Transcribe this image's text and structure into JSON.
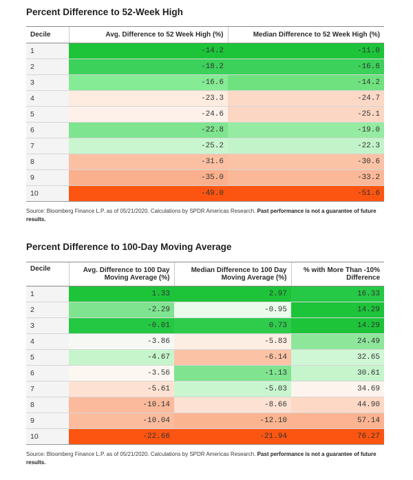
{
  "table1": {
    "title": "Percent Difference to 52-Week High",
    "headers": [
      "Decile",
      "Avg. Difference to 52 Week High (%)",
      "Median Difference to 52 Week High (%)"
    ],
    "rows": [
      [
        "1",
        "-14.2",
        "-11.0"
      ],
      [
        "2",
        "-18.2",
        "-16.6"
      ],
      [
        "3",
        "-16.6",
        "-14.2"
      ],
      [
        "4",
        "-23.3",
        "-24.7"
      ],
      [
        "5",
        "-24.6",
        "-25.1"
      ],
      [
        "6",
        "-22.8",
        "-19.0"
      ],
      [
        "7",
        "-25.2",
        "-22.3"
      ],
      [
        "8",
        "-31.6",
        "-30.6"
      ],
      [
        "9",
        "-35.0",
        "-33.2"
      ],
      [
        "10",
        "-49.0",
        "-51.6"
      ]
    ],
    "colors": [
      [
        "#1dc43a",
        "#1dc43a"
      ],
      [
        "#3cd15a",
        "#3cd15a"
      ],
      [
        "#86eb95",
        "#6fe27f"
      ],
      [
        "#fdecdf",
        "#fbd9c6"
      ],
      [
        "#fdf1ea",
        "#fbd7c3"
      ],
      [
        "#7fe48f",
        "#95eba1"
      ],
      [
        "#c9f6cf",
        "#c3f4c9"
      ],
      [
        "#fbc0a2",
        "#fbc3a6"
      ],
      [
        "#fab08d",
        "#fbb898"
      ],
      [
        "#fb5511",
        "#fb5511"
      ]
    ],
    "source_text": "Source: Bloomberg Finance L.P. as of 05/21/2020. Calculations by SPDR Americas Research. ",
    "source_bold": "Past performance is not a guarantee of future results."
  },
  "table2": {
    "title": "Percent Difference to 100-Day Moving Average",
    "headers": [
      "Decile",
      "Avg. Difference to 100 Day Moving Average (%)",
      "Median Difference to 100 Day Moving Average (%)",
      "% with More Than -10% Difference"
    ],
    "rows": [
      [
        "1",
        "1.33",
        "2.97",
        "16.33"
      ],
      [
        "2",
        "-2.29",
        "-0.95",
        "14.29"
      ],
      [
        "3",
        "-0.01",
        "0.73",
        "14.29"
      ],
      [
        "4",
        "-3.86",
        "-5.83",
        "24.49"
      ],
      [
        "5",
        "-4.67",
        "-6.14",
        "32.65"
      ],
      [
        "6",
        "-3.56",
        "-1.13",
        "30.61"
      ],
      [
        "7",
        "-5.61",
        "-5.03",
        "34.69"
      ],
      [
        "8",
        "-10.14",
        "-8.66",
        "44.90"
      ],
      [
        "9",
        "-10.04",
        "-12.10",
        "57.14"
      ],
      [
        "10",
        "-22.66",
        "-21.94",
        "76.27"
      ]
    ],
    "colors": [
      [
        "#1dc43a",
        "#1dc43a",
        "#26c945"
      ],
      [
        "#7fe38f",
        "#eafbec",
        "#1dc43a"
      ],
      [
        "#25c843",
        "#2fcc4c",
        "#1dc43a"
      ],
      [
        "#f6f8f4",
        "#fdeee3",
        "#8ee69b"
      ],
      [
        "#c6f5cc",
        "#fbc2a5",
        "#d0f7d5"
      ],
      [
        "#fdf7f2",
        "#7fe38f",
        "#c6f5cc"
      ],
      [
        "#fde2d3",
        "#c9f6cf",
        "#fef4ee"
      ],
      [
        "#fbba9b",
        "#fde2d3",
        "#fdd9c5"
      ],
      [
        "#fbbc9e",
        "#fbb490",
        "#fbb391"
      ],
      [
        "#fb5511",
        "#fb5511",
        "#fb5511"
      ]
    ],
    "source_text": "Source: Bloomberg Finance L.P. as of 05/21/2020. Calculations by SPDR Americas Research. ",
    "source_bold": "Past performance is not a guarantee of future results."
  }
}
